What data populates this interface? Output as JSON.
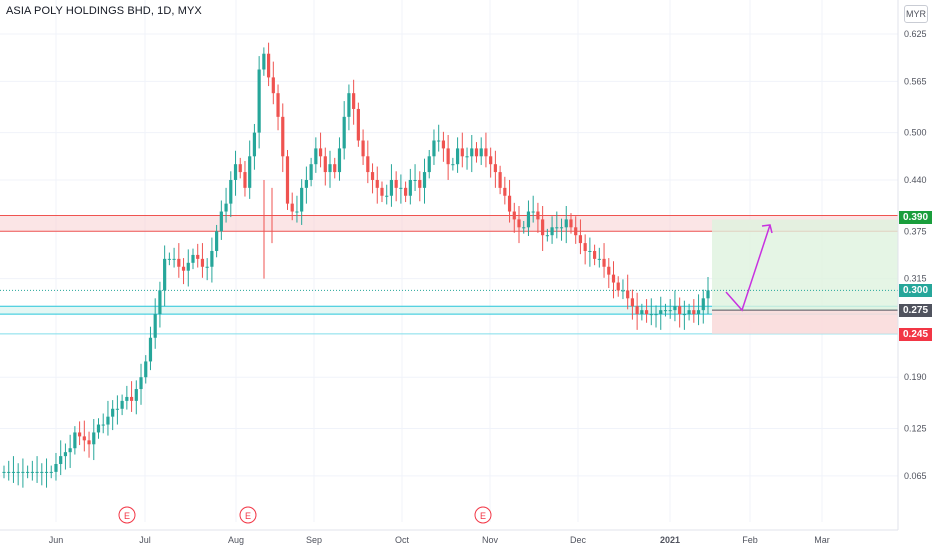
{
  "header": {
    "title": "ASIA POLY HOLDINGS BHD, 1D, MYX",
    "currency": "MYR"
  },
  "y_axis": {
    "ticks": [
      "0.625",
      "0.565",
      "0.500",
      "0.440",
      "0.375",
      "0.315",
      "0.190",
      "0.125",
      "0.065"
    ]
  },
  "x_axis": {
    "labels": [
      "Jun",
      "Jul",
      "Aug",
      "Sep",
      "Oct",
      "Nov",
      "Dec",
      "2021",
      "Feb",
      "Mar"
    ]
  },
  "earnings_marker": "E",
  "price_tags": {
    "target": {
      "label": "0.390",
      "color": "#22ab94"
    },
    "current": {
      "label": "0.300",
      "color": "#26a69a"
    },
    "entry": {
      "label": "0.275",
      "color": "#50535e"
    },
    "stop": {
      "label": "0.245",
      "color": "#f23645"
    }
  },
  "colors": {
    "up": "#26a69a",
    "down": "#ef5350",
    "arrow": "#c832e0",
    "zone_red": "#f8d4d6",
    "zone_green": "#dff3df"
  },
  "chart_data": {
    "type": "candlestick",
    "title": "ASIA POLY HOLDINGS BHD, 1D, MYX",
    "y_range": [
      0.04,
      0.65
    ],
    "resistance_zone": [
      0.375,
      0.395
    ],
    "support_zone": [
      0.27,
      0.28
    ],
    "long_position": {
      "entry": 0.275,
      "target": 0.39,
      "stop": 0.245
    },
    "price_path": [
      0.07,
      0.07,
      0.07,
      0.07,
      0.07,
      0.07,
      0.07,
      0.07,
      0.07,
      0.07,
      0.07,
      0.08,
      0.09,
      0.095,
      0.1,
      0.12,
      0.115,
      0.11,
      0.105,
      0.12,
      0.13,
      0.13,
      0.14,
      0.15,
      0.15,
      0.16,
      0.165,
      0.16,
      0.175,
      0.19,
      0.21,
      0.24,
      0.27,
      0.3,
      0.34,
      0.34,
      0.34,
      0.33,
      0.325,
      0.335,
      0.345,
      0.34,
      0.33,
      0.33,
      0.35,
      0.375,
      0.4,
      0.41,
      0.44,
      0.46,
      0.45,
      0.43,
      0.47,
      0.5,
      0.58,
      0.6,
      0.57,
      0.55,
      0.52,
      0.47,
      0.41,
      0.4,
      0.4,
      0.43,
      0.44,
      0.46,
      0.48,
      0.47,
      0.45,
      0.46,
      0.45,
      0.48,
      0.52,
      0.55,
      0.53,
      0.49,
      0.47,
      0.45,
      0.44,
      0.43,
      0.42,
      0.42,
      0.44,
      0.43,
      0.43,
      0.42,
      0.44,
      0.44,
      0.43,
      0.45,
      0.47,
      0.49,
      0.49,
      0.48,
      0.46,
      0.46,
      0.48,
      0.47,
      0.47,
      0.48,
      0.47,
      0.48,
      0.47,
      0.46,
      0.45,
      0.43,
      0.42,
      0.4,
      0.39,
      0.38,
      0.38,
      0.4,
      0.4,
      0.39,
      0.37,
      0.37,
      0.38,
      0.38,
      0.38,
      0.39,
      0.38,
      0.37,
      0.36,
      0.35,
      0.35,
      0.34,
      0.34,
      0.33,
      0.32,
      0.31,
      0.3,
      0.3,
      0.29,
      0.28,
      0.27,
      0.275,
      0.27,
      0.27,
      0.27,
      0.275,
      0.275,
      0.275,
      0.28,
      0.27,
      0.27,
      0.275,
      0.27,
      0.275,
      0.29,
      0.3
    ]
  }
}
